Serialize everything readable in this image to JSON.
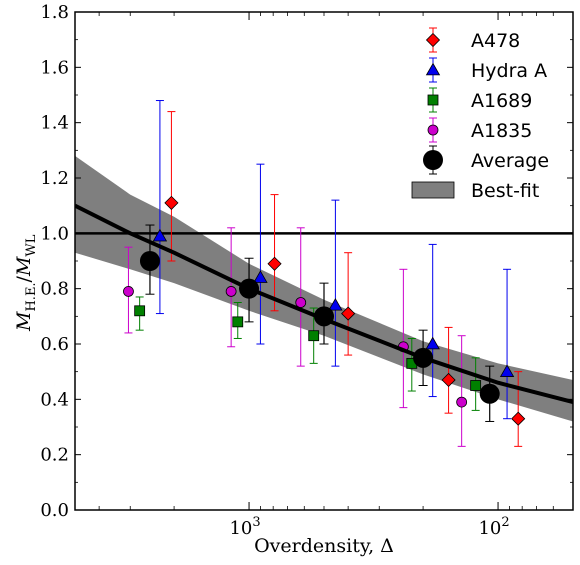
{
  "chart_data": {
    "type": "scatter",
    "xscale": "log",
    "xlim": [
      5000,
      50
    ],
    "ylim": [
      0.0,
      1.8
    ],
    "x_ticks": [
      1000,
      100
    ],
    "x_tick_labels": [
      {
        "base": "10",
        "exp": "3"
      },
      {
        "base": "10",
        "exp": "2"
      }
    ],
    "y_ticks": [
      0.0,
      0.2,
      0.4,
      0.6,
      0.8,
      1.0,
      1.2,
      1.4,
      1.6,
      1.8
    ],
    "y_tick_labels": [
      "0.0",
      "0.2",
      "0.4",
      "0.6",
      "0.8",
      "1.0",
      "1.2",
      "1.4",
      "1.6",
      "1.8"
    ],
    "xlabel": "Overdensity, Δ",
    "ylabel": {
      "main": "M",
      "num_sub": "H.E.",
      "den_sub": "WL",
      "sep": "/"
    },
    "reference_line_y": 1.0,
    "legend_position": "top-right",
    "series": [
      {
        "name": "A478",
        "marker": "diamond",
        "color": "#ff0000",
        "points": [
          {
            "x": 2050,
            "y": 1.11,
            "lo": 0.9,
            "hi": 1.44
          },
          {
            "x": 790,
            "y": 0.89,
            "lo": 0.72,
            "hi": 1.14
          },
          {
            "x": 400,
            "y": 0.71,
            "lo": 0.56,
            "hi": 0.93
          },
          {
            "x": 158,
            "y": 0.47,
            "lo": 0.35,
            "hi": 0.66
          },
          {
            "x": 83,
            "y": 0.33,
            "lo": 0.23,
            "hi": 0.5
          }
        ]
      },
      {
        "name": "Hydra A",
        "marker": "triangle",
        "color": "#0000ee",
        "points": [
          {
            "x": 2280,
            "y": 0.99,
            "lo": 0.71,
            "hi": 1.48
          },
          {
            "x": 900,
            "y": 0.84,
            "lo": 0.6,
            "hi": 1.25
          },
          {
            "x": 450,
            "y": 0.74,
            "lo": 0.52,
            "hi": 1.12
          },
          {
            "x": 183,
            "y": 0.6,
            "lo": 0.41,
            "hi": 0.96
          },
          {
            "x": 92,
            "y": 0.5,
            "lo": 0.33,
            "hi": 0.87
          }
        ]
      },
      {
        "name": "A1689",
        "marker": "square",
        "color": "#008000",
        "points": [
          {
            "x": 2750,
            "y": 0.72,
            "lo": 0.65,
            "hi": 0.77
          },
          {
            "x": 1110,
            "y": 0.68,
            "lo": 0.62,
            "hi": 0.75
          },
          {
            "x": 550,
            "y": 0.63,
            "lo": 0.53,
            "hi": 0.73
          },
          {
            "x": 222,
            "y": 0.53,
            "lo": 0.43,
            "hi": 0.62
          },
          {
            "x": 123,
            "y": 0.45,
            "lo": 0.36,
            "hi": 0.55
          }
        ]
      },
      {
        "name": "A1835",
        "marker": "circle",
        "color": "#cc00cc",
        "points": [
          {
            "x": 3050,
            "y": 0.79,
            "lo": 0.64,
            "hi": 0.95
          },
          {
            "x": 1180,
            "y": 0.79,
            "lo": 0.59,
            "hi": 1.02
          },
          {
            "x": 620,
            "y": 0.75,
            "lo": 0.52,
            "hi": 1.02
          },
          {
            "x": 240,
            "y": 0.59,
            "lo": 0.37,
            "hi": 0.87
          },
          {
            "x": 140,
            "y": 0.39,
            "lo": 0.23,
            "hi": 0.63
          }
        ]
      },
      {
        "name": "Average",
        "marker": "big-circle",
        "color": "#000000",
        "points": [
          {
            "x": 2500,
            "y": 0.9,
            "lo": 0.78,
            "hi": 1.03
          },
          {
            "x": 1000,
            "y": 0.8,
            "lo": 0.68,
            "hi": 0.91
          },
          {
            "x": 500,
            "y": 0.7,
            "lo": 0.6,
            "hi": 0.82
          },
          {
            "x": 200,
            "y": 0.55,
            "lo": 0.45,
            "hi": 0.65
          },
          {
            "x": 108,
            "y": 0.42,
            "lo": 0.32,
            "hi": 0.52
          }
        ]
      }
    ],
    "best_fit": {
      "name": "Best-fit",
      "line_color": "#000000",
      "band_color": "#7f7f7f",
      "x": [
        5000,
        3000,
        2000,
        1000,
        500,
        200,
        100,
        50
      ],
      "y": [
        1.1,
        1.0,
        0.93,
        0.8,
        0.69,
        0.55,
        0.46,
        0.39
      ],
      "y_lo": [
        0.93,
        0.87,
        0.82,
        0.72,
        0.63,
        0.49,
        0.4,
        0.32
      ],
      "y_hi": [
        1.28,
        1.14,
        1.06,
        0.89,
        0.76,
        0.61,
        0.53,
        0.47
      ]
    }
  }
}
